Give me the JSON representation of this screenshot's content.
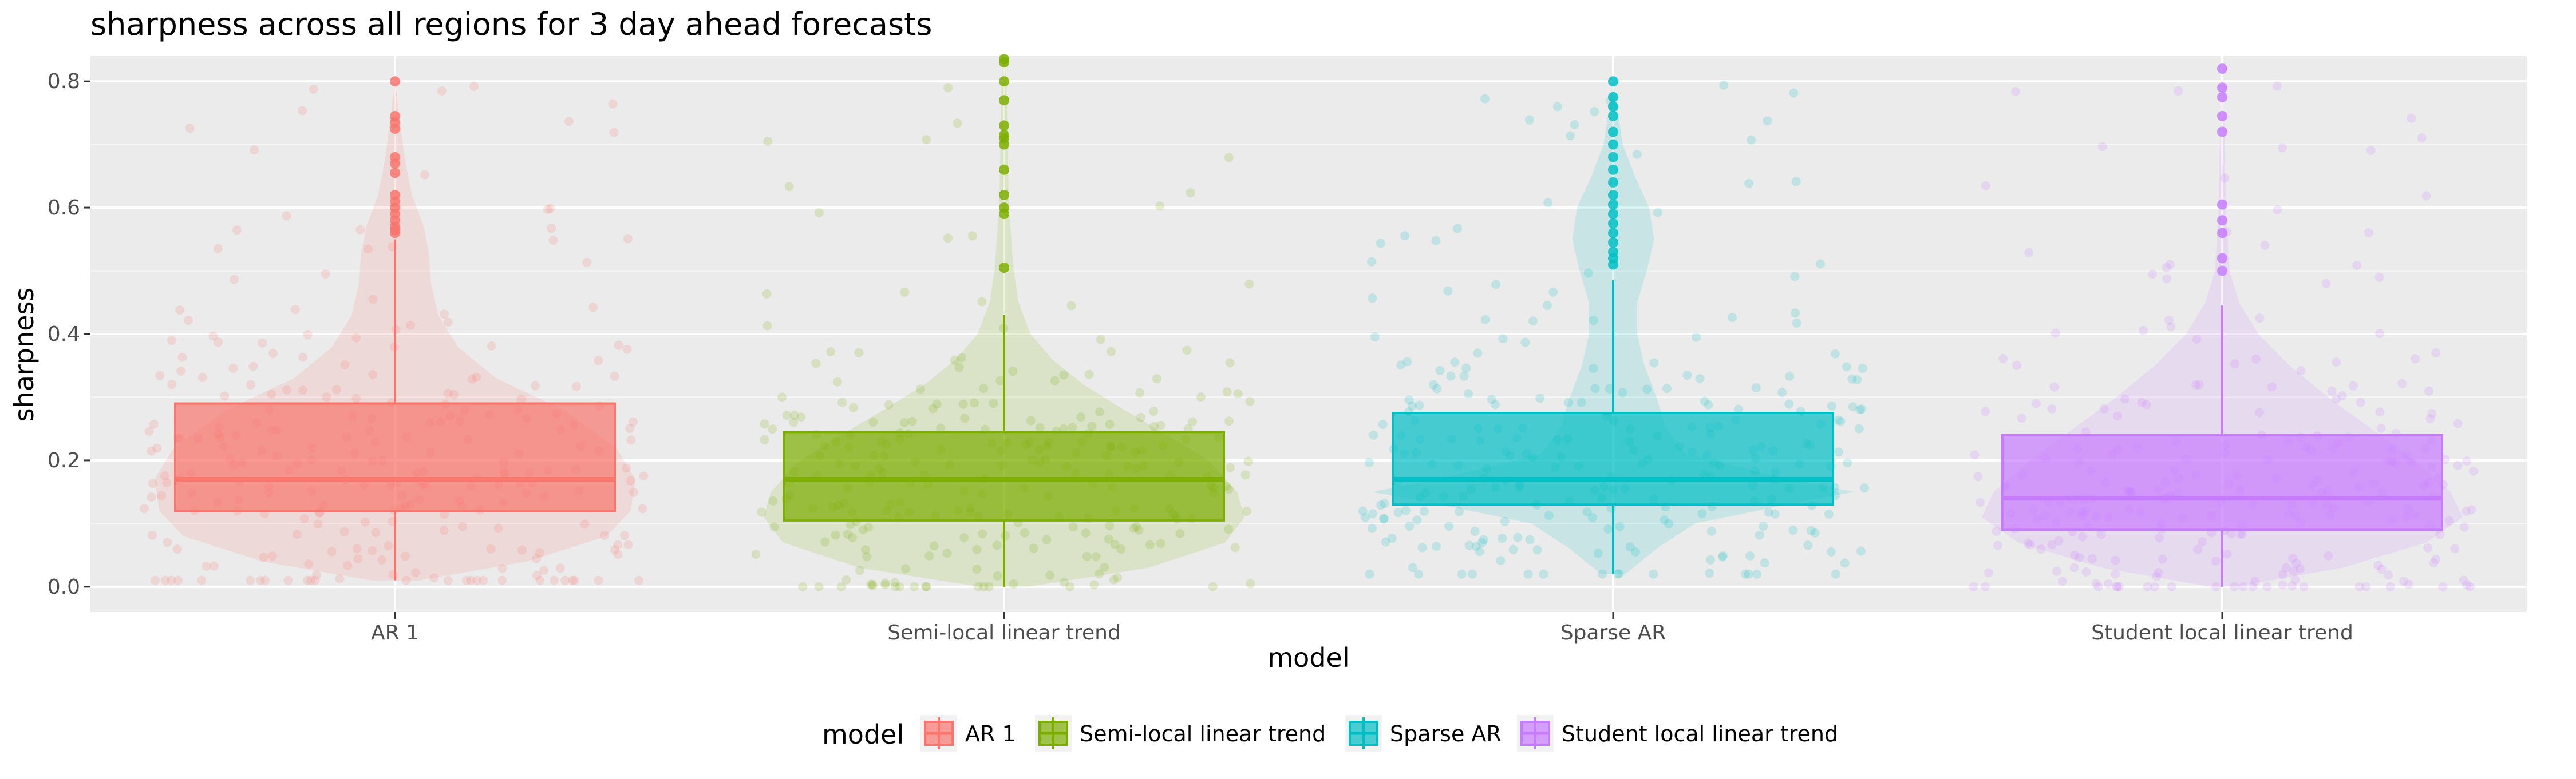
{
  "chart_data": {
    "type": "box",
    "title": "sharpness across all regions for 3 day ahead forecasts",
    "xlabel": "model",
    "ylabel": "sharpness",
    "ylim": [
      -0.04,
      0.84
    ],
    "yticks": [
      0.0,
      0.2,
      0.4,
      0.6,
      0.8
    ],
    "ytick_labels": [
      "0.0",
      "0.2",
      "0.4",
      "0.6",
      "0.8"
    ],
    "grid": true,
    "legend": {
      "title": "model",
      "position": "bottom"
    },
    "overlays": [
      "violin",
      "jittered points",
      "outliers"
    ],
    "categories": [
      "AR 1",
      "Semi-local linear trend",
      "Sparse AR",
      "Student local linear trend"
    ],
    "series": [
      {
        "name": "AR 1",
        "color": "#F8766D",
        "box": {
          "whisker_low": 0.01,
          "q1": 0.12,
          "median": 0.17,
          "q3": 0.29,
          "whisker_high": 0.55
        },
        "outliers": [
          0.56,
          0.565,
          0.57,
          0.58,
          0.59,
          0.6,
          0.61,
          0.62,
          0.655,
          0.67,
          0.68,
          0.725,
          0.735,
          0.745,
          0.8
        ],
        "violin": [
          [
            0.01,
            0.1
          ],
          [
            0.04,
            0.55
          ],
          [
            0.08,
            0.88
          ],
          [
            0.12,
            0.98
          ],
          [
            0.17,
            1.0
          ],
          [
            0.22,
            0.92
          ],
          [
            0.28,
            0.7
          ],
          [
            0.33,
            0.42
          ],
          [
            0.38,
            0.26
          ],
          [
            0.43,
            0.18
          ],
          [
            0.48,
            0.15
          ],
          [
            0.53,
            0.14
          ],
          [
            0.57,
            0.12
          ],
          [
            0.62,
            0.07
          ],
          [
            0.68,
            0.04
          ],
          [
            0.74,
            0.02
          ],
          [
            0.8,
            0.0
          ]
        ]
      },
      {
        "name": "Semi-local linear trend",
        "color": "#7CAE00",
        "box": {
          "whisker_low": 0.0,
          "q1": 0.105,
          "median": 0.17,
          "q3": 0.245,
          "whisker_high": 0.43
        },
        "outliers": [
          0.505,
          0.59,
          0.6,
          0.62,
          0.66,
          0.7,
          0.71,
          0.715,
          0.73,
          0.77,
          0.8,
          0.83,
          0.835
        ],
        "violin": [
          [
            0.0,
            0.1
          ],
          [
            0.03,
            0.6
          ],
          [
            0.07,
            0.92
          ],
          [
            0.11,
            1.0
          ],
          [
            0.15,
            0.97
          ],
          [
            0.2,
            0.85
          ],
          [
            0.24,
            0.68
          ],
          [
            0.28,
            0.5
          ],
          [
            0.32,
            0.33
          ],
          [
            0.36,
            0.2
          ],
          [
            0.4,
            0.11
          ],
          [
            0.45,
            0.06
          ],
          [
            0.5,
            0.04
          ],
          [
            0.6,
            0.02
          ],
          [
            0.7,
            0.015
          ],
          [
            0.8,
            0.01
          ],
          [
            0.84,
            0.0
          ]
        ]
      },
      {
        "name": "Sparse AR",
        "color": "#00BFC4",
        "box": {
          "whisker_low": 0.02,
          "q1": 0.13,
          "median": 0.17,
          "q3": 0.275,
          "whisker_high": 0.485
        },
        "outliers": [
          0.51,
          0.52,
          0.53,
          0.545,
          0.56,
          0.575,
          0.59,
          0.605,
          0.62,
          0.64,
          0.66,
          0.68,
          0.7,
          0.72,
          0.745,
          0.76,
          0.775,
          0.8
        ],
        "violin": [
          [
            0.02,
            0.05
          ],
          [
            0.06,
            0.18
          ],
          [
            0.1,
            0.34
          ],
          [
            0.13,
            0.72
          ],
          [
            0.15,
            1.0
          ],
          [
            0.18,
            0.62
          ],
          [
            0.21,
            0.3
          ],
          [
            0.25,
            0.22
          ],
          [
            0.3,
            0.18
          ],
          [
            0.35,
            0.13
          ],
          [
            0.4,
            0.1
          ],
          [
            0.45,
            0.1
          ],
          [
            0.5,
            0.14
          ],
          [
            0.55,
            0.17
          ],
          [
            0.6,
            0.15
          ],
          [
            0.65,
            0.09
          ],
          [
            0.7,
            0.04
          ],
          [
            0.75,
            0.02
          ],
          [
            0.8,
            0.0
          ]
        ]
      },
      {
        "name": "Student local linear trend",
        "color": "#C77CFF",
        "box": {
          "whisker_low": 0.0,
          "q1": 0.09,
          "median": 0.14,
          "q3": 0.24,
          "whisker_high": 0.445
        },
        "outliers": [
          0.5,
          0.52,
          0.56,
          0.58,
          0.605,
          0.72,
          0.745,
          0.775,
          0.79,
          0.82
        ],
        "violin": [
          [
            0.0,
            0.05
          ],
          [
            0.03,
            0.5
          ],
          [
            0.07,
            0.85
          ],
          [
            0.11,
            1.0
          ],
          [
            0.15,
            0.95
          ],
          [
            0.2,
            0.8
          ],
          [
            0.25,
            0.62
          ],
          [
            0.3,
            0.44
          ],
          [
            0.35,
            0.28
          ],
          [
            0.4,
            0.15
          ],
          [
            0.45,
            0.07
          ],
          [
            0.5,
            0.03
          ],
          [
            0.6,
            0.015
          ],
          [
            0.7,
            0.01
          ],
          [
            0.82,
            0.0
          ]
        ]
      }
    ]
  }
}
